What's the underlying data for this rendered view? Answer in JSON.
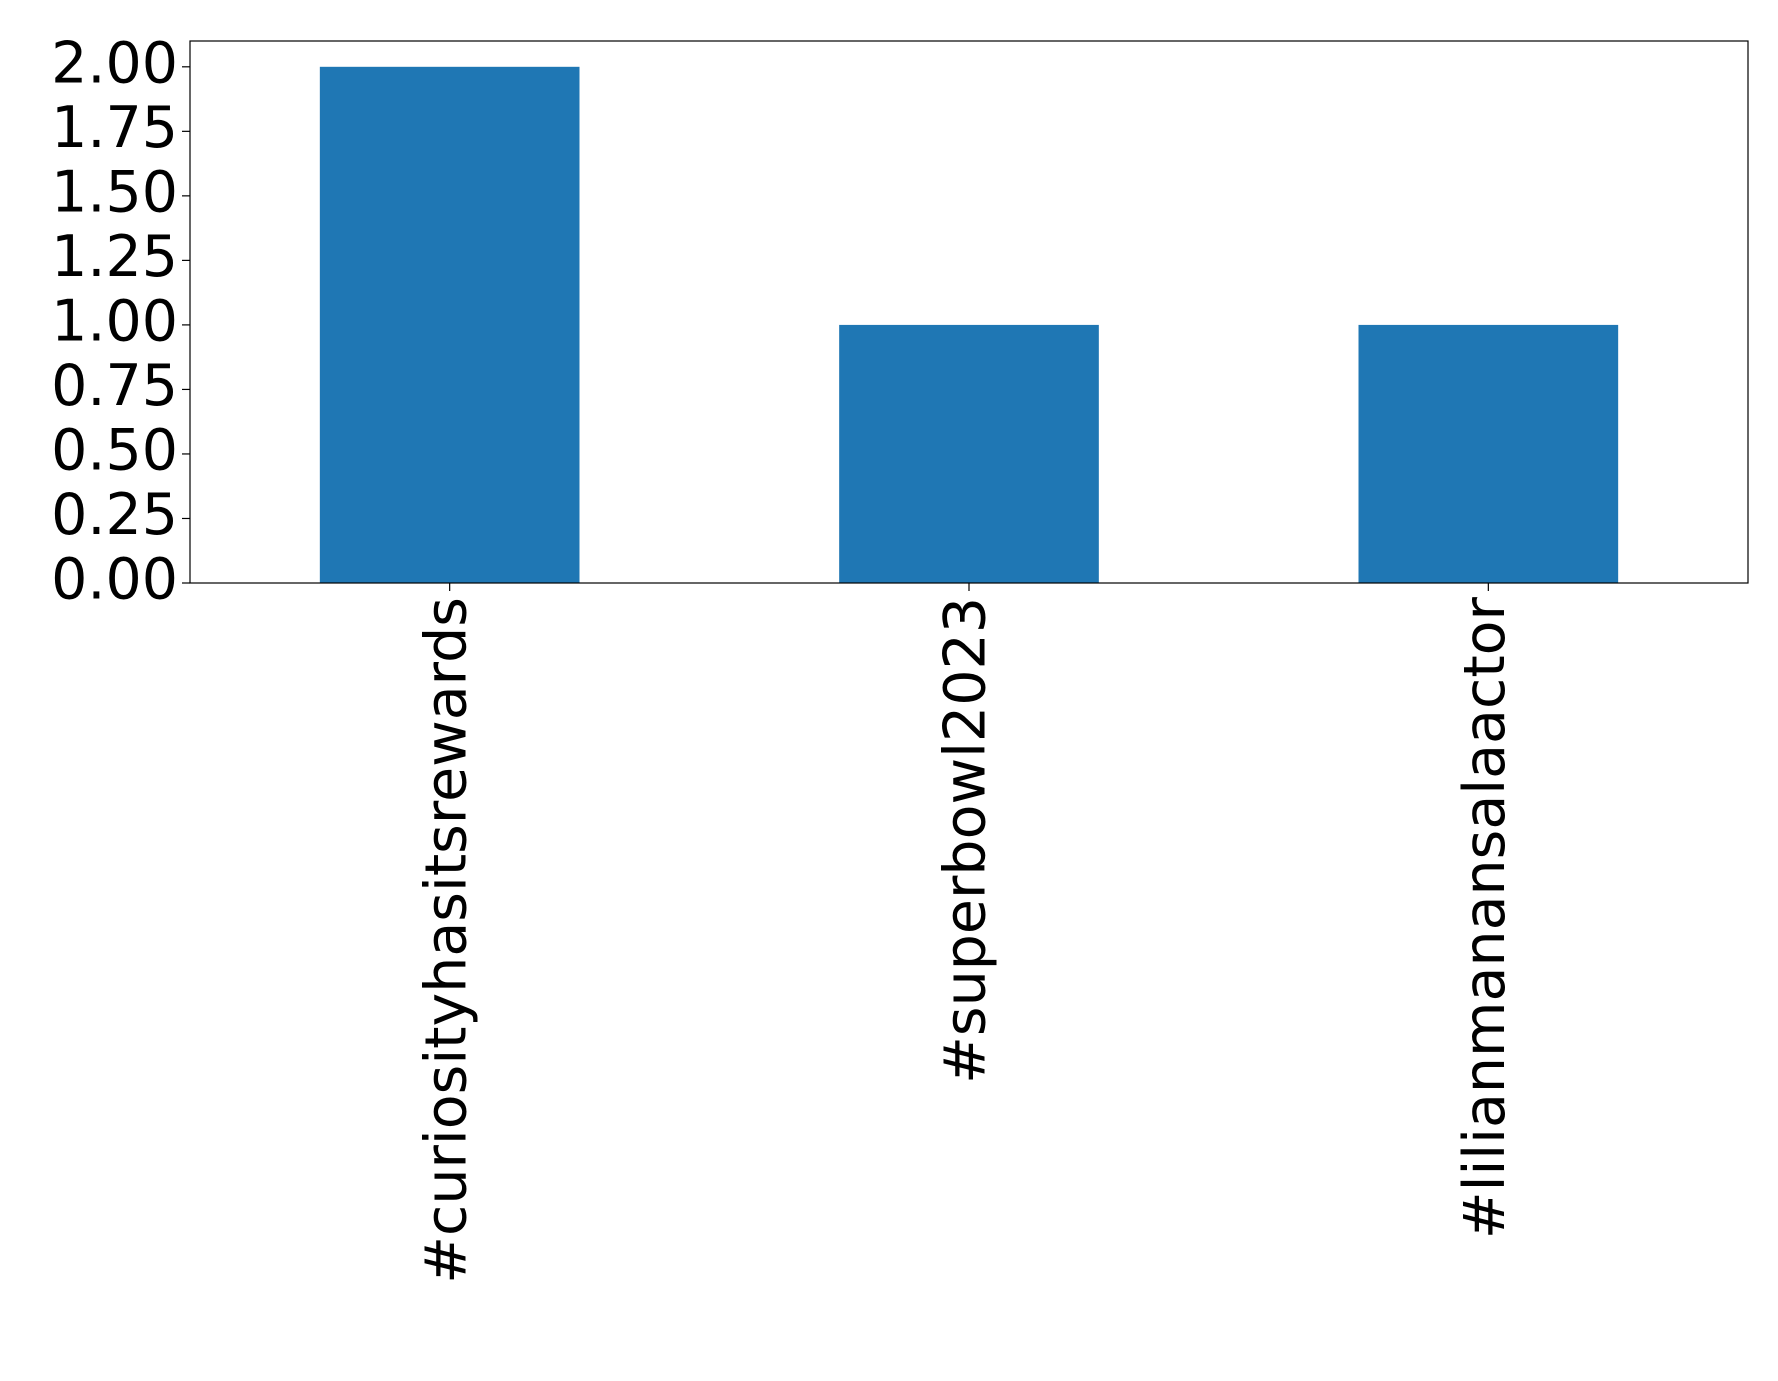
{
  "chart_data": {
    "type": "bar",
    "categories": [
      "#curiosityhasitsrewards",
      "#superbowl2023",
      "#lilianmanansalaactor"
    ],
    "values": [
      2,
      1,
      1
    ],
    "color": "#1f77b4",
    "ylim": [
      0,
      2.1
    ],
    "yticks": [
      {
        "value": 0,
        "label": "0.00"
      },
      {
        "value": 0.25,
        "label": "0.25"
      },
      {
        "value": 0.5,
        "label": "0.50"
      },
      {
        "value": 0.75,
        "label": "0.75"
      },
      {
        "value": 1,
        "label": "1.00"
      },
      {
        "value": 1.25,
        "label": "1.25"
      },
      {
        "value": 1.5,
        "label": "1.50"
      },
      {
        "value": 1.75,
        "label": "1.75"
      },
      {
        "value": 2,
        "label": "2.00"
      }
    ],
    "grid": false
  }
}
